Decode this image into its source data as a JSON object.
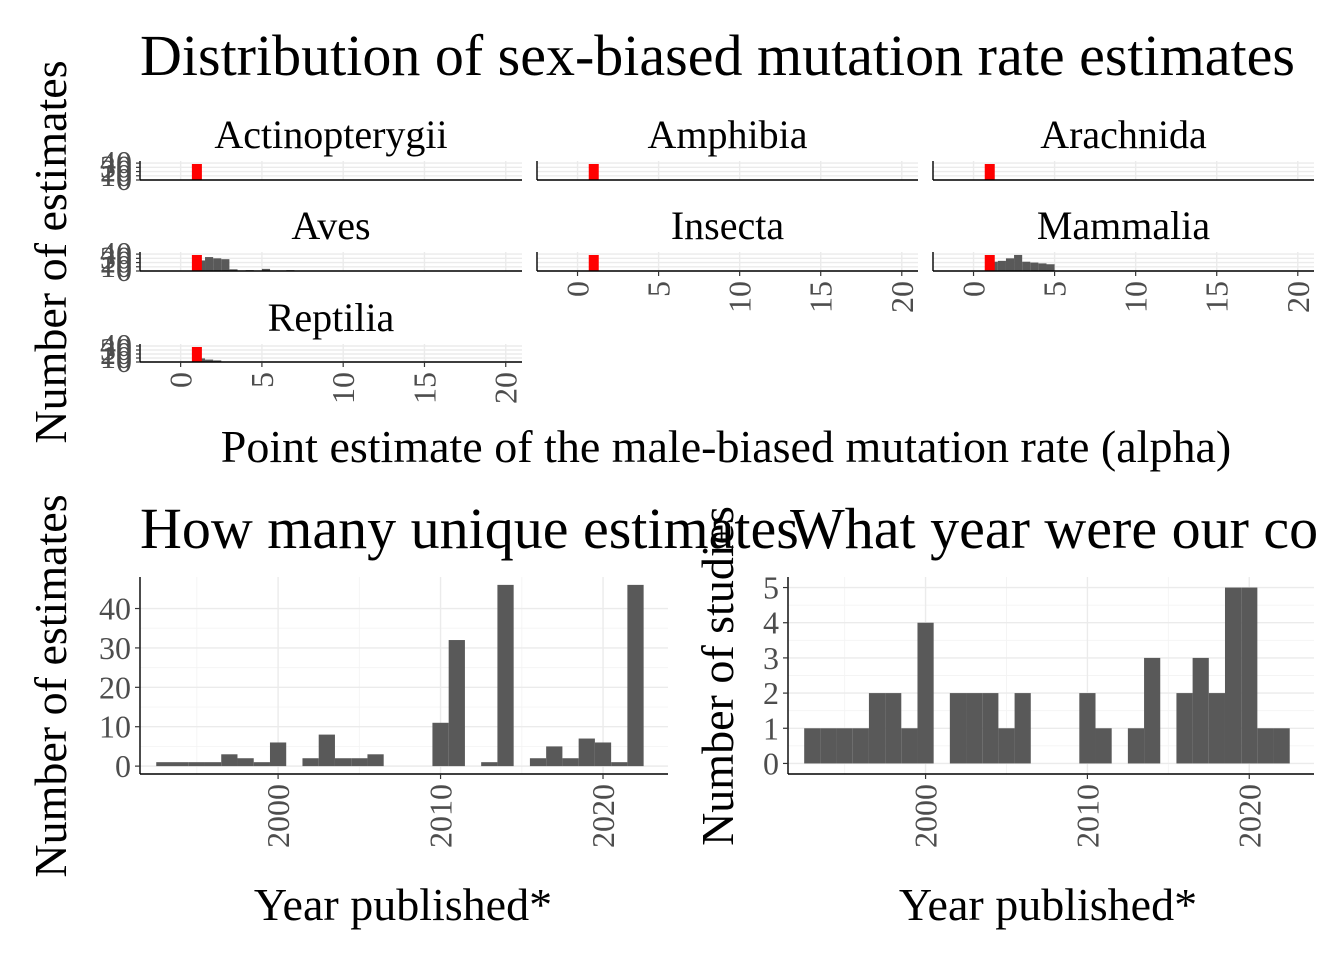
{
  "colors": {
    "bar": "#595959",
    "reference_marker": "#ff0000",
    "grid": "#ebebeb"
  },
  "figure": {
    "top_title": "Distribution of sex-biased mutation rate estimates",
    "top_ylabel": "Number of estimates",
    "top_xlabel": "Point estimate of the male-biased mutation rate (alpha)",
    "bottom_left_title": "How many unique estimates",
    "bottom_left_xlabel": "Year published*",
    "bottom_left_ylabel": "Number of estimates",
    "bottom_right_title": "What year were our co",
    "bottom_right_xlabel": "Year published*",
    "bottom_right_ylabel": "Number of studies"
  },
  "chart_data": [
    {
      "type": "bar",
      "chart": "faceted_histogram",
      "title": "Distribution of sex-biased mutation rate estimates",
      "xlabel": "Point estimate of the male-biased mutation rate (alpha)",
      "ylabel": "Number of estimates",
      "xlim": [
        -2.5,
        21
      ],
      "x_ticks": [
        "0",
        "5",
        "10",
        "15",
        "20"
      ],
      "y_ticks": [
        "0",
        "10",
        "20",
        "30",
        "40"
      ],
      "ylim": [
        0,
        45
      ],
      "reference_line_x": 1,
      "bin_width": 0.5,
      "facets": [
        {
          "name": "Actinopterygii",
          "bins": []
        },
        {
          "name": "Amphibia",
          "bins": []
        },
        {
          "name": "Arachnida",
          "bins": []
        },
        {
          "name": "Aves",
          "bins": [
            {
              "x": 1.25,
              "count": 25
            },
            {
              "x": 1.75,
              "count": 33
            },
            {
              "x": 2.25,
              "count": 30
            },
            {
              "x": 2.75,
              "count": 28
            },
            {
              "x": 3.25,
              "count": 4
            },
            {
              "x": 4.25,
              "count": 2
            },
            {
              "x": 5.25,
              "count": 5
            },
            {
              "x": 6.75,
              "count": 2
            }
          ]
        },
        {
          "name": "Insecta",
          "bins": []
        },
        {
          "name": "Mammalia",
          "bins": [
            {
              "x": 1.25,
              "count": 22
            },
            {
              "x": 1.75,
              "count": 24
            },
            {
              "x": 2.25,
              "count": 30
            },
            {
              "x": 2.75,
              "count": 38
            },
            {
              "x": 3.25,
              "count": 22
            },
            {
              "x": 3.75,
              "count": 20
            },
            {
              "x": 4.25,
              "count": 18
            },
            {
              "x": 4.75,
              "count": 16
            }
          ]
        },
        {
          "name": "Reptilia",
          "bins": [
            {
              "x": 1.25,
              "count": 9
            },
            {
              "x": 1.75,
              "count": 6
            },
            {
              "x": 2.25,
              "count": 4
            }
          ]
        }
      ]
    },
    {
      "type": "bar",
      "title": "How many unique estimates",
      "xlabel": "Year published*",
      "ylabel": "Number of estimates",
      "xlim": [
        1991.5,
        2024
      ],
      "ylim": [
        -2,
        48
      ],
      "x_ticks": [
        "2000",
        "2010",
        "2020"
      ],
      "y_ticks": [
        "0",
        "10",
        "20",
        "30",
        "40"
      ],
      "years": [
        1993,
        1994,
        1995,
        1996,
        1997,
        1998,
        1999,
        2000,
        2001,
        2002,
        2003,
        2004,
        2005,
        2006,
        2007,
        2008,
        2009,
        2010,
        2011,
        2012,
        2013,
        2014,
        2015,
        2016,
        2017,
        2018,
        2019,
        2020,
        2021,
        2022
      ],
      "values": [
        1,
        1,
        1,
        1,
        3,
        2,
        1,
        6,
        0,
        2,
        8,
        2,
        2,
        3,
        0,
        0,
        0,
        11,
        32,
        0,
        1,
        46,
        0,
        2,
        5,
        2,
        7,
        6,
        1,
        46
      ]
    },
    {
      "type": "bar",
      "title": "What year were our co",
      "xlabel": "Year published*",
      "ylabel": "Number of studies",
      "xlim": [
        1991.5,
        2024
      ],
      "ylim": [
        -0.3,
        5.3
      ],
      "x_ticks": [
        "2000",
        "2010",
        "2020"
      ],
      "y_ticks": [
        "0",
        "1",
        "2",
        "3",
        "4",
        "5"
      ],
      "years": [
        1993,
        1994,
        1995,
        1996,
        1997,
        1998,
        1999,
        2000,
        2001,
        2002,
        2003,
        2004,
        2005,
        2006,
        2007,
        2008,
        2009,
        2010,
        2011,
        2012,
        2013,
        2014,
        2015,
        2016,
        2017,
        2018,
        2019,
        2020,
        2021,
        2022
      ],
      "values": [
        1,
        1,
        1,
        1,
        2,
        2,
        1,
        4,
        0,
        2,
        2,
        2,
        1,
        2,
        0,
        0,
        0,
        2,
        1,
        0,
        1,
        3,
        0,
        2,
        3,
        2,
        5,
        5,
        1,
        1
      ]
    }
  ]
}
